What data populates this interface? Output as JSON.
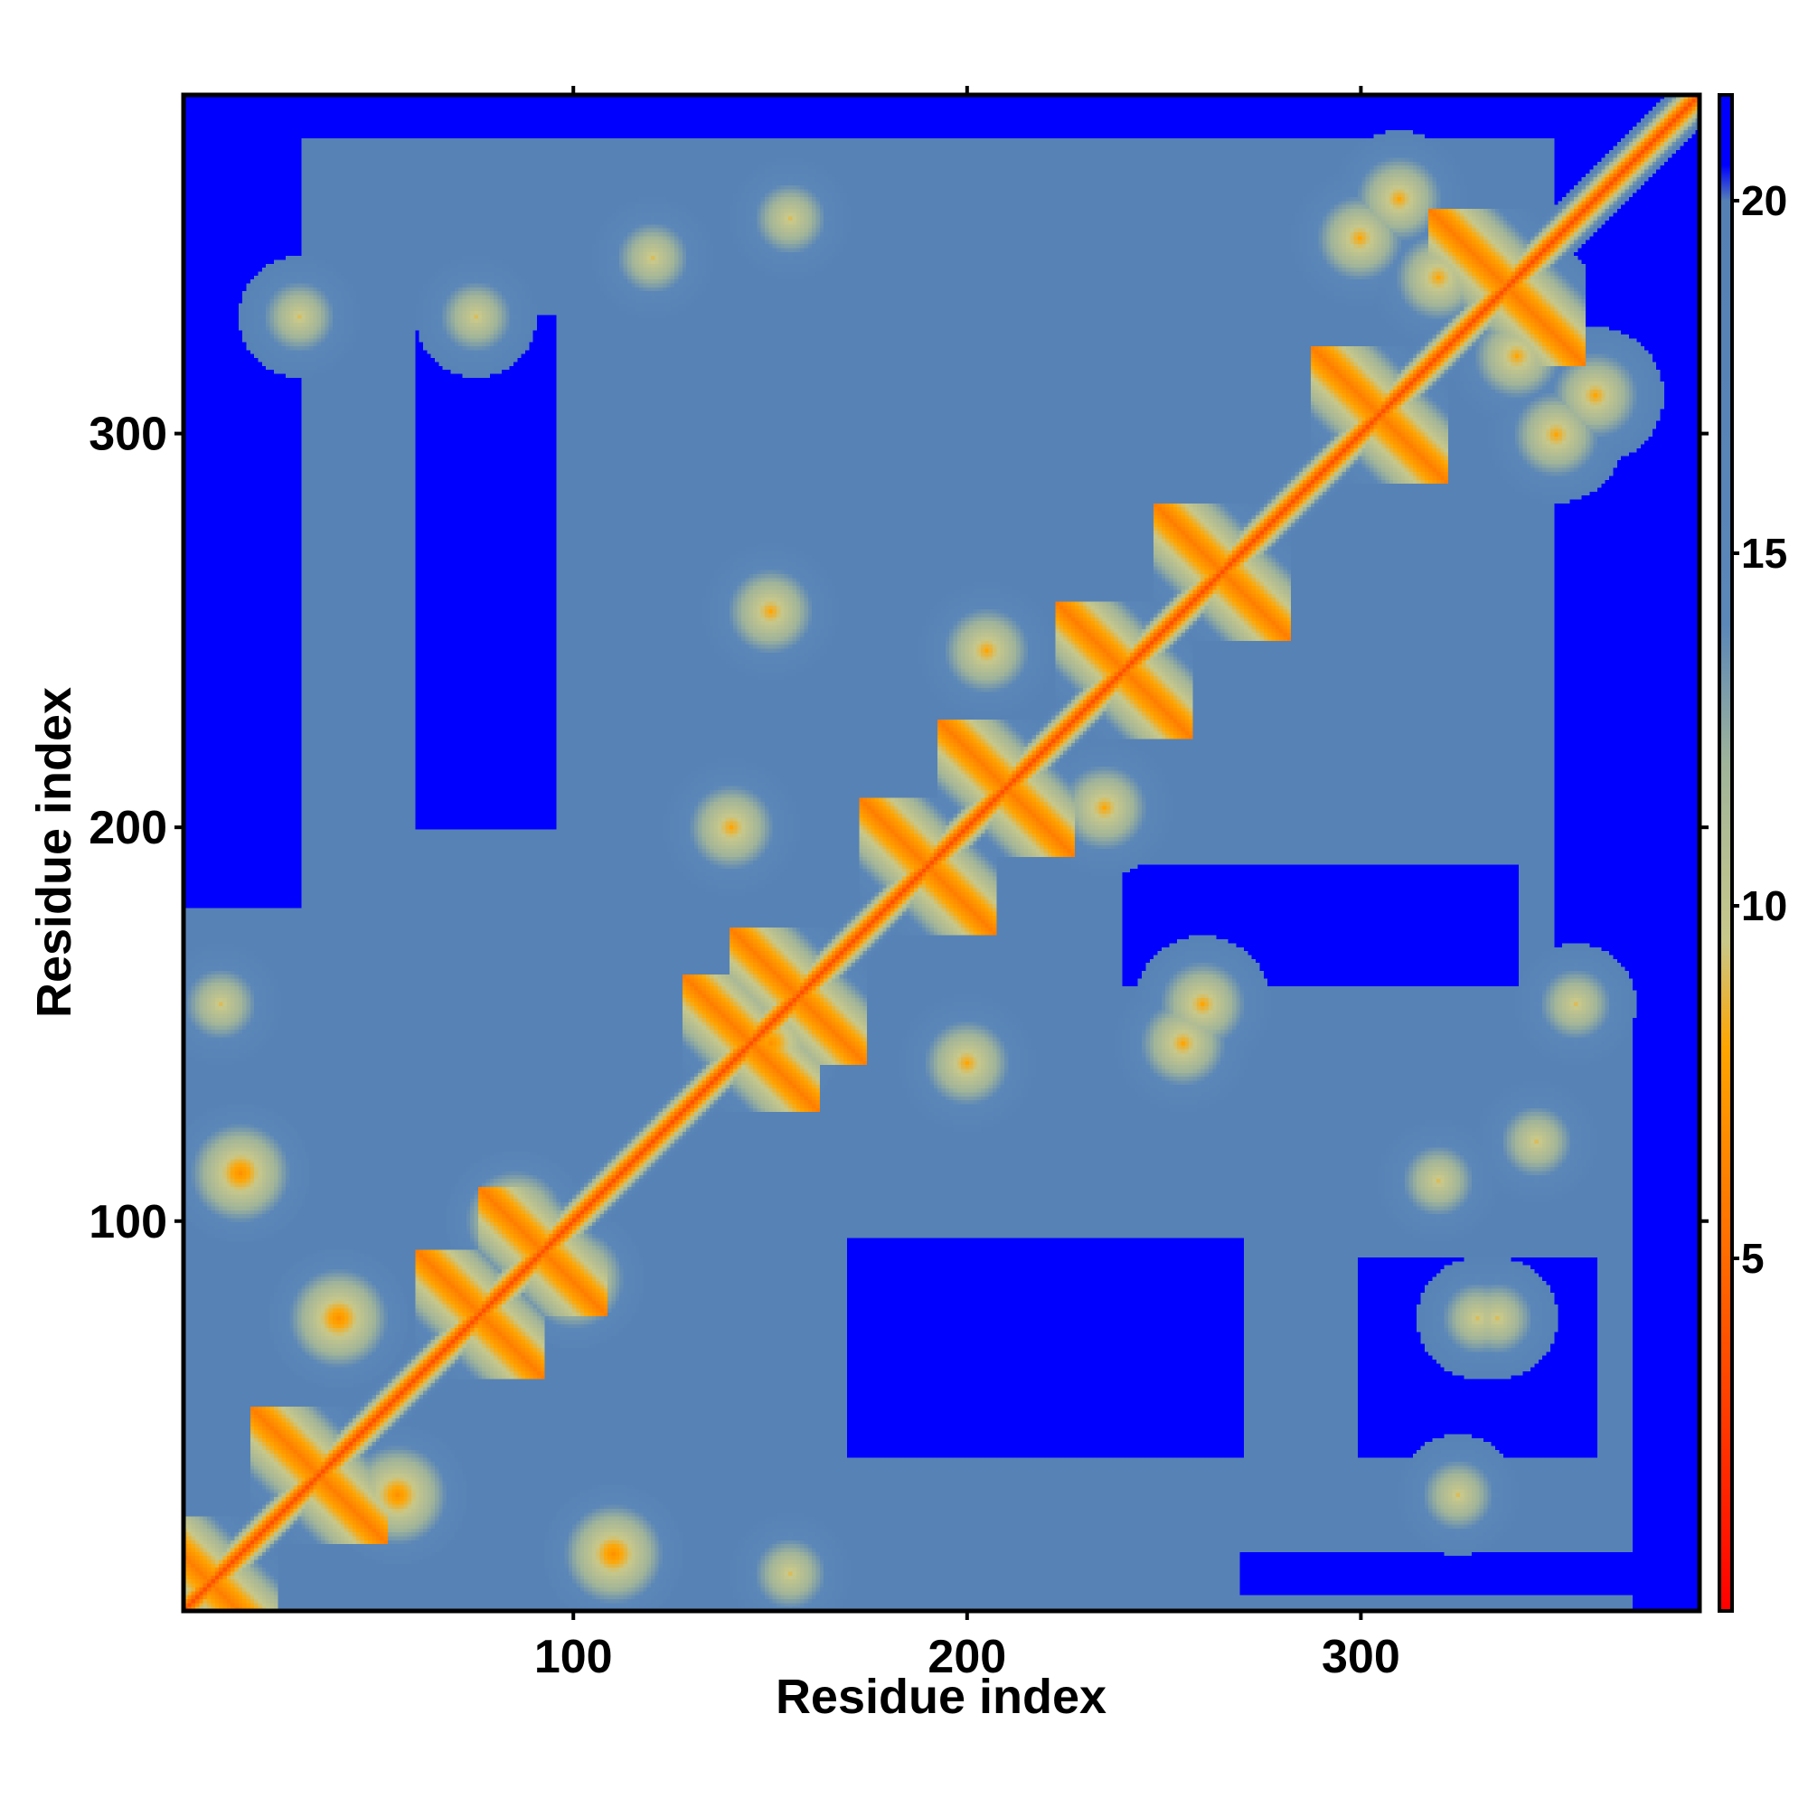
{
  "chart_data": {
    "type": "heatmap",
    "title": "",
    "xlabel": "Residue index",
    "ylabel": "Residue index",
    "xlim": [
      1,
      386
    ],
    "ylim": [
      1,
      386
    ],
    "xticks": [
      100,
      200,
      300
    ],
    "yticks": [
      100,
      200,
      300
    ],
    "grid": false,
    "legend": "colorbar-right",
    "colorbar": {
      "range": [
        0,
        21.5
      ],
      "ticks": [
        5,
        10,
        15,
        20
      ],
      "stops": [
        {
          "value": 0,
          "color": "#ff0000"
        },
        {
          "value": 5,
          "color": "#ff6a00"
        },
        {
          "value": 8,
          "color": "#ffa500"
        },
        {
          "value": 9.5,
          "color": "#c8c88a"
        },
        {
          "value": 12,
          "color": "#a0b49a"
        },
        {
          "value": 14,
          "color": "#5a86b8"
        },
        {
          "value": 20,
          "color": "#5580b4"
        },
        {
          "value": 20.5,
          "color": "#0000ff"
        }
      ]
    },
    "description_values": {
      "diagonal_distance": 3.8,
      "background_distance": 18,
      "far_distance": 21
    },
    "helix_segments": [
      [
        3,
        12
      ],
      [
        30,
        40
      ],
      [
        72,
        80
      ],
      [
        88,
        96
      ],
      [
        140,
        150
      ],
      [
        152,
        162
      ],
      [
        185,
        195
      ],
      [
        205,
        215
      ],
      [
        235,
        245
      ],
      [
        260,
        270
      ],
      [
        300,
        310
      ],
      [
        330,
        345
      ]
    ],
    "contact_clusters": [
      {
        "x": 15,
        "y": 112,
        "v": 7
      },
      {
        "x": 40,
        "y": 75,
        "v": 7
      },
      {
        "x": 55,
        "y": 30,
        "v": 7
      },
      {
        "x": 110,
        "y": 15,
        "v": 7
      },
      {
        "x": 85,
        "y": 100,
        "v": 7
      },
      {
        "x": 100,
        "y": 85,
        "v": 7
      },
      {
        "x": 150,
        "y": 145,
        "v": 7
      },
      {
        "x": 140,
        "y": 200,
        "v": 8
      },
      {
        "x": 150,
        "y": 255,
        "v": 8
      },
      {
        "x": 205,
        "y": 245,
        "v": 8
      },
      {
        "x": 235,
        "y": 205,
        "v": 8
      },
      {
        "x": 200,
        "y": 140,
        "v": 8
      },
      {
        "x": 255,
        "y": 145,
        "v": 8
      },
      {
        "x": 260,
        "y": 155,
        "v": 8
      },
      {
        "x": 300,
        "y": 350,
        "v": 8
      },
      {
        "x": 310,
        "y": 360,
        "v": 8
      },
      {
        "x": 350,
        "y": 300,
        "v": 8
      },
      {
        "x": 360,
        "y": 310,
        "v": 8
      },
      {
        "x": 340,
        "y": 320,
        "v": 8
      },
      {
        "x": 320,
        "y": 340,
        "v": 8
      },
      {
        "x": 30,
        "y": 330,
        "v": 9
      },
      {
        "x": 75,
        "y": 330,
        "v": 9
      },
      {
        "x": 120,
        "y": 345,
        "v": 9
      },
      {
        "x": 155,
        "y": 355,
        "v": 9
      },
      {
        "x": 325,
        "y": 30,
        "v": 9
      },
      {
        "x": 330,
        "y": 75,
        "v": 9
      },
      {
        "x": 345,
        "y": 120,
        "v": 9
      },
      {
        "x": 355,
        "y": 155,
        "v": 9
      },
      {
        "x": 10,
        "y": 155,
        "v": 9
      },
      {
        "x": 155,
        "y": 10,
        "v": 9
      },
      {
        "x": 335,
        "y": 75,
        "v": 9
      },
      {
        "x": 320,
        "y": 110,
        "v": 9
      }
    ],
    "far_regions": [
      {
        "x": [
          1,
          386
        ],
        "y": [
          376,
          386
        ]
      },
      {
        "x": [
          370,
          386
        ],
        "y": [
          1,
          386
        ]
      },
      {
        "x": [
          1,
          30
        ],
        "y": [
          180,
          386
        ]
      },
      {
        "x": [
          60,
          95
        ],
        "y": [
          200,
          330
        ]
      },
      {
        "x": [
          170,
          270
        ],
        "y": [
          40,
          95
        ]
      },
      {
        "x": [
          270,
          386
        ],
        "y": [
          5,
          15
        ]
      },
      {
        "x": [
          240,
          340
        ],
        "y": [
          160,
          190
        ]
      },
      {
        "x": [
          350,
          386
        ],
        "y": [
          150,
          386
        ]
      },
      {
        "x": [
          300,
          360
        ],
        "y": [
          40,
          90
        ]
      }
    ]
  }
}
